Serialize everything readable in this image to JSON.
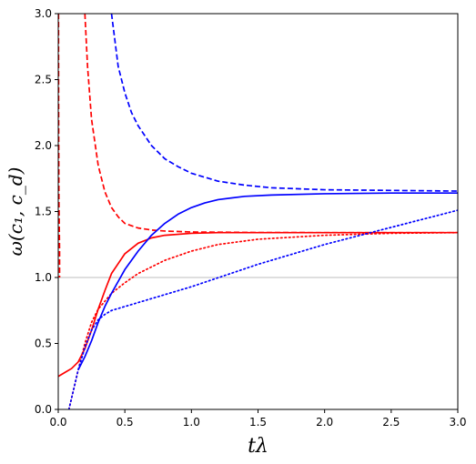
{
  "chart_data": {
    "type": "line",
    "title": "",
    "xlabel": "tλ",
    "ylabel": "ω(c₁, c_d)",
    "xlim": [
      0.0,
      3.0
    ],
    "ylim": [
      0.0,
      3.0
    ],
    "x_ticks": [
      "0.0",
      "0.5",
      "1.0",
      "1.5",
      "2.0",
      "2.5",
      "3.0"
    ],
    "y_ticks": [
      "0.0",
      "0.5",
      "1.0",
      "1.5",
      "2.0",
      "2.5",
      "3.0"
    ],
    "grid": false,
    "legend": "none",
    "reference_line": {
      "y": 1.0,
      "color": "#d3d3d3"
    },
    "series": [
      {
        "color": "#ff0000",
        "style": "solid",
        "x": [
          0.0,
          0.05,
          0.1,
          0.15,
          0.2,
          0.25,
          0.3,
          0.35,
          0.4,
          0.5,
          0.6,
          0.7,
          0.8,
          1.0,
          1.2,
          1.5,
          2.0,
          2.5,
          3.0
        ],
        "y": [
          0.25,
          0.28,
          0.31,
          0.36,
          0.46,
          0.6,
          0.76,
          0.9,
          1.03,
          1.18,
          1.26,
          1.3,
          1.32,
          1.335,
          1.34,
          1.34,
          1.34,
          1.34,
          1.34
        ]
      },
      {
        "color": "#ff0000",
        "style": "dashed",
        "x": [
          0.002,
          0.003,
          0.005,
          0.01,
          0.01
        ],
        "y": [
          3.0,
          2.2,
          1.6,
          1.2,
          1.0
        ]
      },
      {
        "color": "#ff0000",
        "style": "dashed",
        "x": [
          0.2,
          0.22,
          0.25,
          0.3,
          0.35,
          0.4,
          0.45,
          0.5,
          0.6,
          0.7,
          0.8,
          1.0,
          1.5,
          2.0,
          3.0
        ],
        "y": [
          3.0,
          2.6,
          2.2,
          1.85,
          1.65,
          1.53,
          1.46,
          1.41,
          1.375,
          1.36,
          1.352,
          1.345,
          1.341,
          1.34,
          1.34
        ]
      },
      {
        "color": "#ff0000",
        "style": "dotted",
        "x": [
          0.08,
          0.12,
          0.15,
          0.2,
          0.25,
          0.3,
          0.4,
          0.5,
          0.6,
          0.8,
          1.0,
          1.2,
          1.5,
          2.0,
          2.5,
          3.0
        ],
        "y": [
          0.0,
          0.17,
          0.3,
          0.5,
          0.66,
          0.76,
          0.88,
          0.96,
          1.03,
          1.13,
          1.2,
          1.25,
          1.29,
          1.32,
          1.335,
          1.34
        ]
      },
      {
        "color": "#0000ff",
        "style": "solid",
        "x": [
          0.15,
          0.2,
          0.25,
          0.3,
          0.35,
          0.4,
          0.5,
          0.6,
          0.7,
          0.8,
          0.9,
          1.0,
          1.1,
          1.2,
          1.4,
          1.6,
          2.0,
          2.5,
          3.0
        ],
        "y": [
          0.3,
          0.4,
          0.52,
          0.66,
          0.78,
          0.88,
          1.06,
          1.2,
          1.32,
          1.41,
          1.48,
          1.53,
          1.565,
          1.59,
          1.615,
          1.625,
          1.635,
          1.64,
          1.64
        ]
      },
      {
        "color": "#0000ff",
        "style": "dashed",
        "x": [
          0.4,
          0.45,
          0.5,
          0.55,
          0.6,
          0.7,
          0.8,
          0.9,
          1.0,
          1.2,
          1.4,
          1.6,
          2.0,
          2.5,
          3.0
        ],
        "y": [
          3.0,
          2.6,
          2.4,
          2.25,
          2.15,
          2.0,
          1.9,
          1.84,
          1.79,
          1.73,
          1.7,
          1.68,
          1.665,
          1.66,
          1.655
        ]
      },
      {
        "color": "#0000ff",
        "style": "dotted",
        "x": [
          0.08,
          0.12,
          0.15,
          0.2,
          0.25,
          0.3,
          0.35,
          0.4,
          0.5,
          0.6,
          0.8,
          1.0,
          1.5,
          2.0,
          2.5,
          3.0
        ],
        "y": [
          0.0,
          0.17,
          0.3,
          0.47,
          0.6,
          0.68,
          0.72,
          0.75,
          0.78,
          0.81,
          0.87,
          0.93,
          1.1,
          1.25,
          1.38,
          1.51
        ]
      }
    ]
  }
}
